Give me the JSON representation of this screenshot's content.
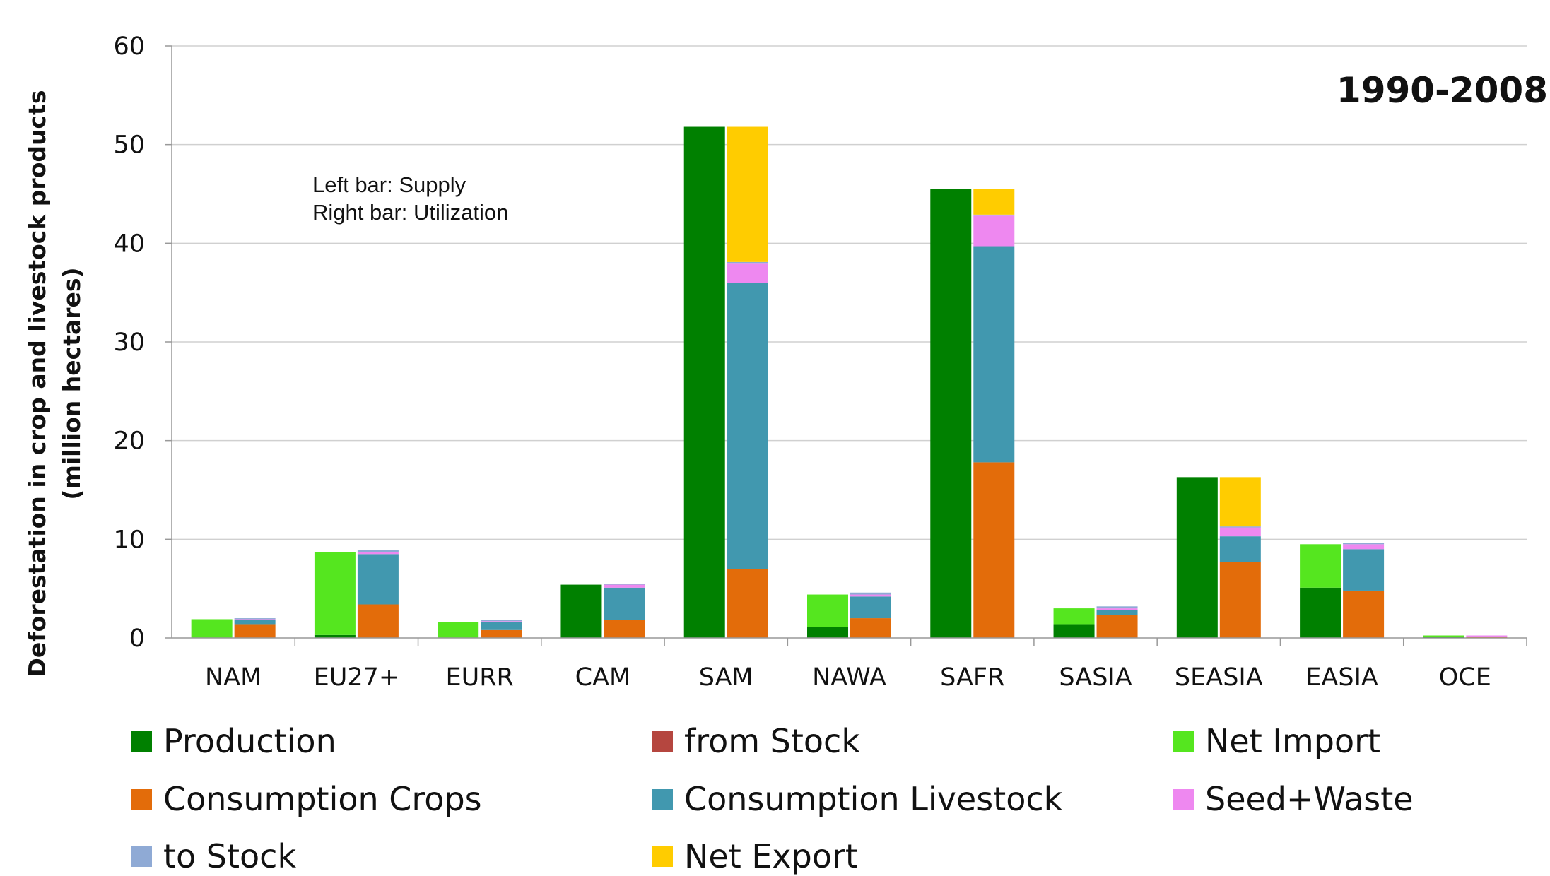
{
  "chart_data": {
    "type": "bar",
    "stacked": true,
    "grouped": true,
    "title": "1990-2008",
    "ylabel_line1": "Deforestation in crop and livestock products",
    "ylabel_line2": "(million hectares)",
    "note_line1": "Left bar:   Supply",
    "note_line2": "Right bar: Utilization",
    "ylim": [
      0,
      60
    ],
    "yticks": [
      "0",
      "10",
      "20",
      "30",
      "40",
      "50",
      "60"
    ],
    "grid": true,
    "legend_position": "bottom",
    "categories": [
      "NAM",
      "EU27+",
      "EURR",
      "CAM",
      "SAM",
      "NAWA",
      "SAFR",
      "SASIA",
      "SEASIA",
      "EASIA",
      "OCE"
    ],
    "left_bar": "Supply",
    "right_bar": "Utilization",
    "supply_series": [
      {
        "name": "Production",
        "color": "#008000",
        "values": [
          0,
          0.3,
          0,
          5.4,
          51.8,
          1.1,
          45.5,
          1.4,
          16.3,
          5.1,
          0.1
        ]
      },
      {
        "name": "from Stock",
        "color": "#b5463f",
        "values": [
          0,
          0,
          0,
          0,
          0,
          0,
          0,
          0,
          0,
          0,
          0
        ]
      },
      {
        "name": "Net Import",
        "color": "#55e61f",
        "values": [
          1.9,
          8.4,
          1.6,
          0,
          0,
          3.3,
          0,
          1.6,
          0,
          4.4,
          0.15
        ]
      }
    ],
    "utilization_series": [
      {
        "name": "Consumption Crops",
        "color": "#e36c0a",
        "values": [
          1.4,
          3.4,
          0.8,
          1.8,
          7.0,
          2.0,
          17.8,
          2.3,
          7.7,
          4.8,
          0.1
        ]
      },
      {
        "name": "Consumption Livestock",
        "color": "#4198af",
        "values": [
          0.4,
          5.1,
          0.8,
          3.3,
          29.0,
          2.2,
          21.9,
          0.5,
          2.6,
          4.2,
          0
        ]
      },
      {
        "name": "Seed+Waste",
        "color": "#ee88f0",
        "values": [
          0.1,
          0.2,
          0.1,
          0.3,
          2.0,
          0.2,
          3.1,
          0.2,
          0.9,
          0.5,
          0.15
        ]
      },
      {
        "name": "to Stock",
        "color": "#8faad5",
        "values": [
          0.1,
          0.2,
          0.1,
          0.1,
          0.1,
          0.2,
          0.1,
          0.2,
          0.1,
          0.1,
          0
        ]
      },
      {
        "name": "Net Export",
        "color": "#ffcc00",
        "values": [
          0,
          0,
          0,
          0,
          13.7,
          0,
          2.6,
          0,
          5.0,
          0,
          0
        ]
      }
    ],
    "legend": [
      {
        "name": "Production",
        "color": "#008000"
      },
      {
        "name": "from Stock",
        "color": "#b5463f"
      },
      {
        "name": "Net Import",
        "color": "#55e61f"
      },
      {
        "name": "Consumption Crops",
        "color": "#e36c0a"
      },
      {
        "name": "Consumption Livestock",
        "color": "#4198af"
      },
      {
        "name": "Seed+Waste",
        "color": "#ee88f0"
      },
      {
        "name": "to Stock",
        "color": "#8faad5"
      },
      {
        "name": "Net Export",
        "color": "#ffcc00"
      }
    ]
  }
}
